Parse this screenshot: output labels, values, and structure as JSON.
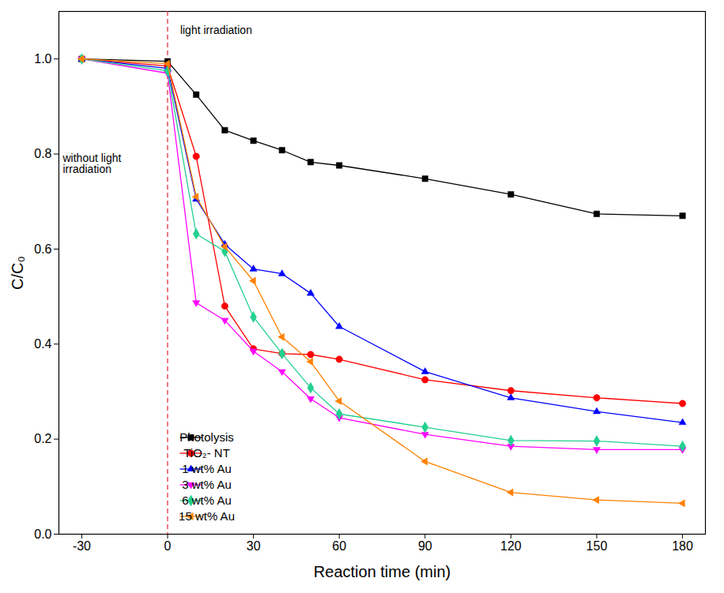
{
  "chart_data": {
    "type": "line",
    "x_label": "Reaction time (min)",
    "y_label": "C/C₀",
    "x": [
      -30,
      0,
      10,
      20,
      30,
      40,
      50,
      60,
      90,
      120,
      150,
      180
    ],
    "xlim": [
      -38,
      188
    ],
    "xticks": [
      -30,
      0,
      30,
      60,
      90,
      120,
      150,
      180
    ],
    "ylim": [
      0,
      1.1
    ],
    "yticks": [
      {
        "value": 0,
        "label": "0.0"
      },
      {
        "value": 0.2,
        "label": "0.2"
      },
      {
        "value": 0.4,
        "label": "0.4"
      },
      {
        "value": 0.6,
        "label": "0.6"
      },
      {
        "value": 0.8,
        "label": "0.8"
      },
      {
        "value": 1.0,
        "label": "1.0"
      }
    ],
    "grid": false,
    "legend": "lower left",
    "vline": {
      "x": 0,
      "color": "#e8303a",
      "line_style": "dashed"
    },
    "annotations": [
      {
        "text": "light irradiation",
        "x": 3,
        "y": 1.06
      },
      {
        "text": "without light irradiation",
        "x": -38,
        "y": 0.8
      }
    ],
    "series": [
      {
        "name": "Photolysis",
        "color": "#000000",
        "marker": "square",
        "values": [
          1.0,
          0.995,
          0.925,
          0.85,
          0.828,
          0.808,
          0.783,
          0.776,
          0.748,
          0.715,
          0.674,
          0.67
        ]
      },
      {
        "name": "TiO₂- NT",
        "color": "#ff0000",
        "marker": "circle",
        "values": [
          1.0,
          0.985,
          0.795,
          0.48,
          0.39,
          0.38,
          0.378,
          0.368,
          0.325,
          0.302,
          0.287,
          0.275
        ]
      },
      {
        "name": "1 wt% Au",
        "color": "#0000ff",
        "marker": "triangle-up",
        "values": [
          1.0,
          0.98,
          0.705,
          0.61,
          0.558,
          0.548,
          0.507,
          0.437,
          0.342,
          0.287,
          0.258,
          0.235
        ]
      },
      {
        "name": "3 wt% Au",
        "color": "#ff00ff",
        "marker": "triangle-down",
        "values": [
          1.0,
          0.97,
          0.487,
          0.45,
          0.385,
          0.342,
          0.285,
          0.245,
          0.21,
          0.185,
          0.178,
          0.178
        ]
      },
      {
        "name": "6 wt% Au",
        "color": "#22d08f",
        "marker": "diamond",
        "values": [
          1.0,
          0.975,
          0.632,
          0.595,
          0.457,
          0.38,
          0.308,
          0.253,
          0.225,
          0.197,
          0.196,
          0.185
        ]
      },
      {
        "name": "15 wt% Au",
        "color": "#ff8000",
        "marker": "triangle-left",
        "values": [
          1.0,
          0.99,
          0.71,
          0.605,
          0.533,
          0.415,
          0.363,
          0.28,
          0.153,
          0.088,
          0.072,
          0.065
        ]
      }
    ]
  }
}
